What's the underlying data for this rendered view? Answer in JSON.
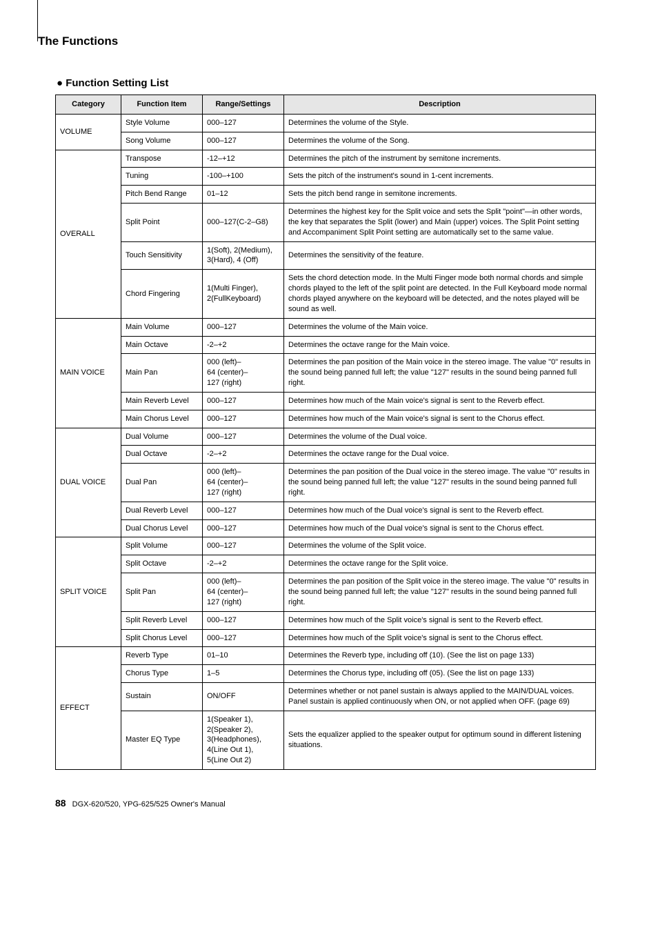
{
  "page": {
    "section_title": "The Functions",
    "list_heading": "● Function Setting List",
    "footer_page": "88",
    "footer_text": "DGX-620/520, YPG-625/525  Owner's Manual"
  },
  "headers": {
    "category": "Category",
    "item": "Function Item",
    "range": "Range/Settings",
    "desc": "Description"
  },
  "groups": [
    {
      "name": "VOLUME",
      "rows": [
        {
          "item": "Style Volume",
          "range": "000–127",
          "desc": "Determines the volume of the Style."
        },
        {
          "item": "Song Volume",
          "range": "000–127",
          "desc": "Determines the volume of the Song."
        }
      ]
    },
    {
      "name": "OVERALL",
      "rows": [
        {
          "item": "Transpose",
          "range": "-12–+12",
          "desc": "Determines the pitch of the instrument by semitone increments."
        },
        {
          "item": "Tuning",
          "range": "-100–+100",
          "desc": "Sets the pitch of the instrument's sound in 1-cent increments."
        },
        {
          "item": "Pitch Bend Range",
          "range": "01–12",
          "desc": "Sets the pitch bend range in semitone increments."
        },
        {
          "item": "Split Point",
          "range": "000–127(C-2–G8)",
          "desc": "Determines the highest key for the Split voice and sets the Split \"point\"—in other words, the key that separates the Split (lower) and Main (upper) voices. The Split Point setting and Accompaniment Split Point setting are automatically set to the same value."
        },
        {
          "item": "Touch Sensitivity",
          "range": "1(Soft), 2(Medium), 3(Hard), 4 (Off)",
          "desc": "Determines the sensitivity of the feature."
        },
        {
          "item": "Chord Fingering",
          "range": "1(Multi Finger), 2(FullKeyboard)",
          "desc": "Sets the chord detection mode. In the Multi Finger mode both normal chords and simple chords played to the left of the split point are detected. In the Full Keyboard mode normal chords played anywhere on the keyboard will be detected, and the notes played will be sound as well."
        }
      ]
    },
    {
      "name": "MAIN VOICE",
      "rows": [
        {
          "item": "Main Volume",
          "range": "000–127",
          "desc": "Determines the volume of the Main voice."
        },
        {
          "item": "Main Octave",
          "range": "-2–+2",
          "desc": "Determines the octave range for the Main voice."
        },
        {
          "item": "Main Pan",
          "range": "000 (left)–\n64 (center)–\n127 (right)",
          "desc": "Determines the pan position of the Main voice in the stereo image. The value \"0\" results in the sound being panned full left; the value \"127\" results in the sound being panned full right."
        },
        {
          "item": "Main Reverb Level",
          "range": "000–127",
          "desc": "Determines how much of the Main voice's signal is sent to the Reverb effect."
        },
        {
          "item": "Main Chorus Level",
          "range": "000–127",
          "desc": "Determines how much of the Main voice's signal is sent to the Chorus effect."
        }
      ]
    },
    {
      "name": "DUAL VOICE",
      "rows": [
        {
          "item": "Dual Volume",
          "range": "000–127",
          "desc": "Determines the volume of the Dual voice."
        },
        {
          "item": "Dual Octave",
          "range": "-2–+2",
          "desc": "Determines the octave range for the Dual voice."
        },
        {
          "item": "Dual Pan",
          "range": "000 (left)–\n64 (center)–\n127 (right)",
          "desc": "Determines the pan position of the Dual voice in the stereo image. The value \"0\" results in the sound being panned full left; the value \"127\" results in the sound being panned full right."
        },
        {
          "item": "Dual Reverb Level",
          "range": "000–127",
          "desc": "Determines how much of the Dual voice's signal is sent to the Reverb effect."
        },
        {
          "item": "Dual Chorus Level",
          "range": "000–127",
          "desc": "Determines how much of the Dual voice's signal is sent to the Chorus effect."
        }
      ]
    },
    {
      "name": "SPLIT VOICE",
      "rows": [
        {
          "item": "Split Volume",
          "range": "000–127",
          "desc": "Determines the volume of the Split voice."
        },
        {
          "item": "Split Octave",
          "range": "-2–+2",
          "desc": "Determines the octave range for the Split voice."
        },
        {
          "item": "Split Pan",
          "range": "000 (left)–\n64 (center)–\n127 (right)",
          "desc": "Determines the pan position of the Split voice in the stereo image. The value \"0\" results in the sound being panned full left; the value \"127\" results in the sound being panned full right."
        },
        {
          "item": "Split Reverb Level",
          "range": "000–127",
          "desc": "Determines how much of the Split voice's signal is sent to the Reverb effect."
        },
        {
          "item": "Split Chorus Level",
          "range": "000–127",
          "desc": "Determines how much of the Split voice's signal is sent to the Chorus effect."
        }
      ]
    },
    {
      "name": "EFFECT",
      "rows": [
        {
          "item": "Reverb Type",
          "range": "01–10",
          "desc": "Determines the Reverb type, including off (10). (See the list on page 133)"
        },
        {
          "item": "Chorus Type",
          "range": "1–5",
          "desc": "Determines the Chorus type, including off (05). (See the list on page 133)"
        },
        {
          "item": "Sustain",
          "range": "ON/OFF",
          "desc": "Determines whether or not panel sustain is always applied to the MAIN/DUAL voices. Panel sustain is applied continuously when ON, or not applied when OFF. (page 69)"
        },
        {
          "item": "Master EQ Type",
          "range": "1(Speaker 1),\n2(Speaker 2),\n3(Headphones),\n4(Line Out 1),\n5(Line Out 2)",
          "desc": "Sets the equalizer applied to the speaker output for optimum sound in different listening situations."
        }
      ]
    }
  ]
}
